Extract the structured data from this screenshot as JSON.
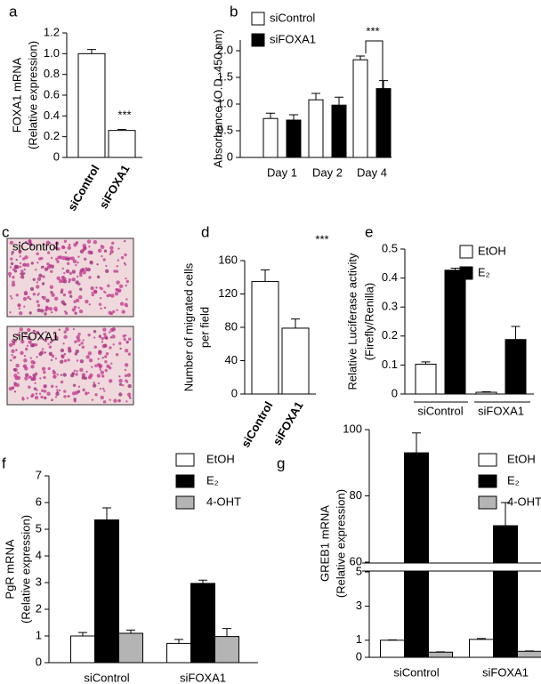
{
  "chart_data": [
    {
      "type": "bar",
      "panel": "a",
      "ylabel": [
        "FOXA1 mRNA",
        "(Relative expression)"
      ],
      "categories": [
        "siControl",
        "siFOXA1"
      ],
      "values": [
        1.0,
        0.26
      ],
      "errors": [
        0.04,
        0.01
      ],
      "color": "#ffffff",
      "ylim": [
        0,
        1.2
      ],
      "yticks": [
        0,
        0.2,
        0.4,
        0.6,
        0.8,
        {
          "value": 1,
          "label": "1.0"
        },
        1.2
      ],
      "annotation": "***"
    },
    {
      "type": "grouped-bar",
      "panel": "b",
      "ylabel": [
        "Absorbance (O.D. 450 nm)"
      ],
      "categories": [
        "Day 1",
        "Day 2",
        "Day 4"
      ],
      "series": [
        {
          "name": "siControl",
          "color": "#ffffff",
          "values": [
            0.73,
            1.08,
            1.83
          ],
          "errors": [
            0.1,
            0.12,
            0.07
          ]
        },
        {
          "name": "siFOXA1",
          "color": "#000000",
          "values": [
            0.7,
            0.98,
            1.29
          ],
          "errors": [
            0.1,
            0.15,
            0.15
          ]
        }
      ],
      "ylim": [
        0,
        2.2
      ],
      "yticks": [
        0,
        0.5,
        {
          "value": 1,
          "label": "1.0"
        },
        1.5,
        {
          "value": 2,
          "label": "2.0"
        }
      ],
      "annotation": "***"
    },
    {
      "type": "bar",
      "panel": "d",
      "ylabel": [
        "Number of migrated cells",
        "per field"
      ],
      "categories": [
        "siControl",
        "siFOXA1"
      ],
      "values": [
        135,
        79
      ],
      "errors": [
        14,
        11
      ],
      "color": "#ffffff",
      "ylim": [
        0,
        160
      ],
      "yticks": [
        0,
        40,
        80,
        120,
        160
      ],
      "annotation": "***"
    },
    {
      "type": "grouped-bar",
      "panel": "e",
      "ylabel": [
        "Relative Luciferase activity",
        "(Firefly/Renilla)"
      ],
      "categories": [
        "siControl",
        "siFOXA1"
      ],
      "series": [
        {
          "name": "EtOH",
          "color": "#ffffff",
          "values": [
            0.103,
            0.006
          ],
          "errors": [
            0.008,
            0.002
          ]
        },
        {
          "name": "E₂",
          "color": "#000000",
          "values": [
            0.427,
            0.188
          ],
          "errors": [
            0.007,
            0.045
          ]
        }
      ],
      "ylim": [
        0,
        0.5
      ],
      "yticks": [
        0,
        0.1,
        0.2,
        0.3,
        0.4,
        0.5
      ]
    },
    {
      "type": "grouped-bar",
      "panel": "f",
      "ylabel": [
        "PgR mRNA",
        "(Relative expression)"
      ],
      "categories": [
        "siControl",
        "siFOXA1"
      ],
      "series": [
        {
          "name": "EtOH",
          "color": "#ffffff",
          "values": [
            1.0,
            0.72
          ],
          "errors": [
            0.13,
            0.15
          ]
        },
        {
          "name": "E₂",
          "color": "#000000",
          "values": [
            5.35,
            2.97
          ],
          "errors": [
            0.45,
            0.12
          ]
        },
        {
          "name": "4-OHT",
          "color": "#b4b4b4",
          "values": [
            1.1,
            0.98
          ],
          "errors": [
            0.12,
            0.3
          ]
        }
      ],
      "ylim": [
        0,
        7
      ],
      "yticks": [
        0,
        1,
        2,
        3,
        4,
        5,
        6,
        7
      ]
    },
    {
      "type": "grouped-bar",
      "panel": "g",
      "ylabel": [
        "GREB1 mRNA",
        "(Relative expression)"
      ],
      "categories": [
        "siControl",
        "siFOXA1"
      ],
      "series": [
        {
          "name": "EtOH",
          "color": "#ffffff",
          "values": [
            1.0,
            1.05
          ],
          "errors": [
            0.02,
            0.05
          ]
        },
        {
          "name": "E₂",
          "color": "#000000",
          "values": [
            93,
            71
          ],
          "errors": [
            6,
            7
          ]
        },
        {
          "name": "4-OHT",
          "color": "#b4b4b4",
          "values": [
            0.3,
            0.35
          ],
          "errors": [
            0.02,
            0.02
          ]
        }
      ],
      "ylim": [
        0,
        100
      ],
      "ybreak": [
        5,
        60
      ],
      "yticks": [
        0,
        1,
        3,
        5,
        60,
        80,
        100
      ]
    }
  ],
  "panel_c": {
    "panel": "c",
    "images": [
      {
        "label": "siControl"
      },
      {
        "label": "siFOXA1"
      }
    ]
  }
}
